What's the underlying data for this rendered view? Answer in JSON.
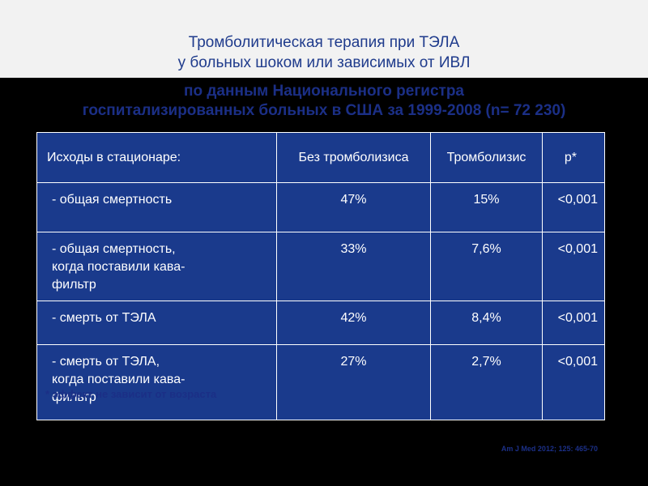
{
  "slide": {
    "title": [
      "Тромболитическая терапия при ТЭЛА",
      "у больных шоком или зависимых от ИВЛ",
      "по данным Национального регистра",
      "госпитализированных больных в США за 1999-2008 (n= 72 230)"
    ]
  },
  "table": {
    "headers": [
      "Исходы в стационаре:",
      "Без тромболизиса",
      "Тромболизис",
      "p*"
    ],
    "rows": [
      {
        "label": " - общая смертность",
        "no_lysis": "47%",
        "lysis": "15%",
        "p": "<0,001"
      },
      {
        "label": " - общая смертность,\nкогда поставили кава-\nфильтр",
        "no_lysis": "33%",
        "lysis": "7,6%",
        "p": "<0,001"
      },
      {
        "label": " - смерть от ТЭЛА",
        "no_lysis": "42%",
        "lysis": "8,4%",
        "p": "<0,001"
      },
      {
        "label": " - смерть от ТЭЛА,\nкогда поставили кава-\nфильтр",
        "no_lysis": "27%",
        "lysis": "2,7%",
        "p": "<0,001"
      }
    ]
  },
  "footnote": "* эффект не зависит от возраста",
  "citation": "Am J Med 2012; 125: 465-70",
  "colors": {
    "table_bg": "#1a3a8c",
    "title_text": "#1f3b8c",
    "band_bg": "#f2f2f2",
    "page_bg": "#000000"
  }
}
